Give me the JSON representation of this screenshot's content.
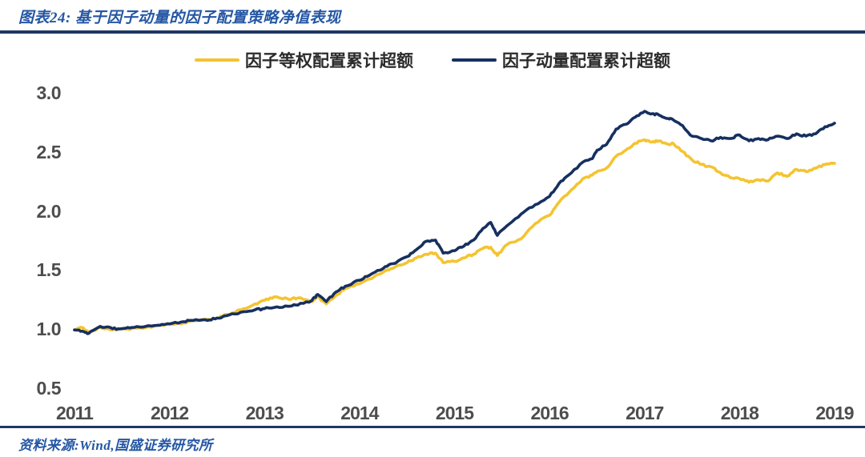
{
  "title": "图表24: 基于因子动量的因子配置策略净值表现",
  "source": "资料来源:Wind,国盛证券研究所",
  "colors": {
    "title_blue": "#2456a4",
    "divider_navy": "#1f3864",
    "axis_text": "#4d4d4d",
    "series_equal_weight": "#f4c430",
    "series_momentum": "#16305f"
  },
  "legend": [
    {
      "label": "因子等权配置累计超额",
      "color": "#f4c430"
    },
    {
      "label": "因子动量配置累计超额",
      "color": "#16305f"
    }
  ],
  "chart_data": {
    "type": "line",
    "title": "基于因子动量的因子配置策略净值表现",
    "xlabel": "",
    "ylabel": "",
    "xlim": [
      2011,
      2019
    ],
    "ylim": [
      0.5,
      3.0
    ],
    "grid": false,
    "legend_position": "top",
    "xticks": [
      2011,
      2012,
      2013,
      2014,
      2015,
      2016,
      2017,
      2018,
      2019
    ],
    "yticks": [
      "0.5",
      "1.0",
      "1.5",
      "2.0",
      "2.5",
      "3.0"
    ],
    "x": [
      2011.0,
      2011.08,
      2011.15,
      2011.27,
      2011.4,
      2011.5,
      2011.6,
      2011.75,
      2011.9,
      2012.0,
      2012.15,
      2012.25,
      2012.4,
      2012.5,
      2012.6,
      2012.75,
      2012.9,
      2013.0,
      2013.1,
      2013.25,
      2013.35,
      2013.5,
      2013.56,
      2013.65,
      2013.75,
      2013.85,
      2014.0,
      2014.1,
      2014.25,
      2014.35,
      2014.5,
      2014.6,
      2014.7,
      2014.8,
      2014.88,
      2015.0,
      2015.1,
      2015.2,
      2015.3,
      2015.38,
      2015.45,
      2015.55,
      2015.7,
      2015.85,
      2016.0,
      2016.1,
      2016.2,
      2016.35,
      2016.45,
      2016.5,
      2016.6,
      2016.7,
      2016.8,
      2016.9,
      2017.0,
      2017.08,
      2017.15,
      2017.25,
      2017.3,
      2017.4,
      2017.5,
      2017.6,
      2017.7,
      2017.8,
      2017.9,
      2018.0,
      2018.1,
      2018.2,
      2018.3,
      2018.4,
      2018.5,
      2018.6,
      2018.7,
      2018.8,
      2018.9,
      2019.0
    ],
    "series": [
      {
        "name": "因子等权配置累计超额",
        "color": "#f4c430",
        "values": [
          1.0,
          1.02,
          0.98,
          1.02,
          1.0,
          1.01,
          1.01,
          1.02,
          1.04,
          1.05,
          1.06,
          1.08,
          1.09,
          1.1,
          1.13,
          1.17,
          1.22,
          1.25,
          1.28,
          1.26,
          1.27,
          1.24,
          1.28,
          1.22,
          1.29,
          1.35,
          1.39,
          1.43,
          1.49,
          1.52,
          1.57,
          1.61,
          1.64,
          1.65,
          1.57,
          1.58,
          1.61,
          1.64,
          1.69,
          1.7,
          1.63,
          1.72,
          1.77,
          1.9,
          1.97,
          2.08,
          2.16,
          2.28,
          2.31,
          2.34,
          2.37,
          2.47,
          2.52,
          2.58,
          2.61,
          2.59,
          2.6,
          2.57,
          2.58,
          2.51,
          2.44,
          2.4,
          2.38,
          2.33,
          2.29,
          2.28,
          2.25,
          2.27,
          2.26,
          2.33,
          2.3,
          2.36,
          2.34,
          2.37,
          2.4,
          2.41
        ]
      },
      {
        "name": "因子动量配置累计超额",
        "color": "#16305f",
        "values": [
          1.0,
          0.99,
          0.97,
          1.03,
          1.01,
          1.01,
          1.02,
          1.03,
          1.04,
          1.05,
          1.07,
          1.08,
          1.08,
          1.1,
          1.12,
          1.15,
          1.17,
          1.18,
          1.19,
          1.2,
          1.21,
          1.25,
          1.3,
          1.24,
          1.32,
          1.37,
          1.42,
          1.46,
          1.52,
          1.56,
          1.62,
          1.68,
          1.75,
          1.76,
          1.65,
          1.67,
          1.71,
          1.76,
          1.86,
          1.91,
          1.8,
          1.88,
          1.98,
          2.06,
          2.13,
          2.24,
          2.31,
          2.42,
          2.45,
          2.52,
          2.57,
          2.7,
          2.74,
          2.8,
          2.85,
          2.83,
          2.82,
          2.79,
          2.78,
          2.73,
          2.64,
          2.62,
          2.6,
          2.63,
          2.62,
          2.65,
          2.6,
          2.62,
          2.61,
          2.64,
          2.62,
          2.66,
          2.64,
          2.66,
          2.72,
          2.75
        ]
      }
    ]
  }
}
